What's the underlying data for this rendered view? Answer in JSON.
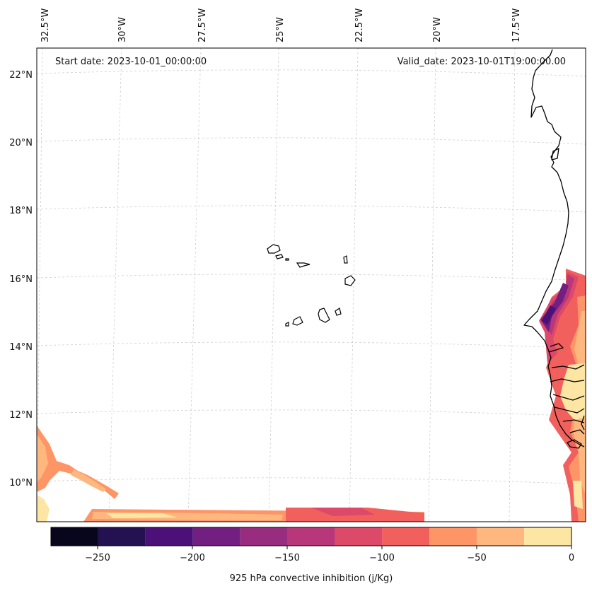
{
  "start_date": "Start date: 2023-10-01_00:00:00",
  "valid_date": "Valid_date: 2023-10-01T19:00:00.00",
  "lon_labels": [
    "32.5°W",
    "30°W",
    "27.5°W",
    "25°W",
    "22.5°W",
    "20°W",
    "17.5°W"
  ],
  "lat_labels": [
    "22°N",
    "20°N",
    "18°N",
    "16°N",
    "14°N",
    "12°N",
    "10°N"
  ],
  "colorbar": {
    "label": "925 hPa convective inhibition (j/Kg)",
    "ticks": [
      "−250",
      "−200",
      "−150",
      "−100",
      "−50",
      "0"
    ],
    "levels": [
      -275,
      -250,
      -225,
      -200,
      -175,
      -150,
      -125,
      -100,
      -75,
      -50,
      -25,
      0
    ],
    "colors": [
      "#07061c",
      "#231151",
      "#4c1178",
      "#721f81",
      "#982d80",
      "#b8377a",
      "#dd4968",
      "#f1605d",
      "#fd9567",
      "#feb77e",
      "#fde6a3"
    ]
  }
}
